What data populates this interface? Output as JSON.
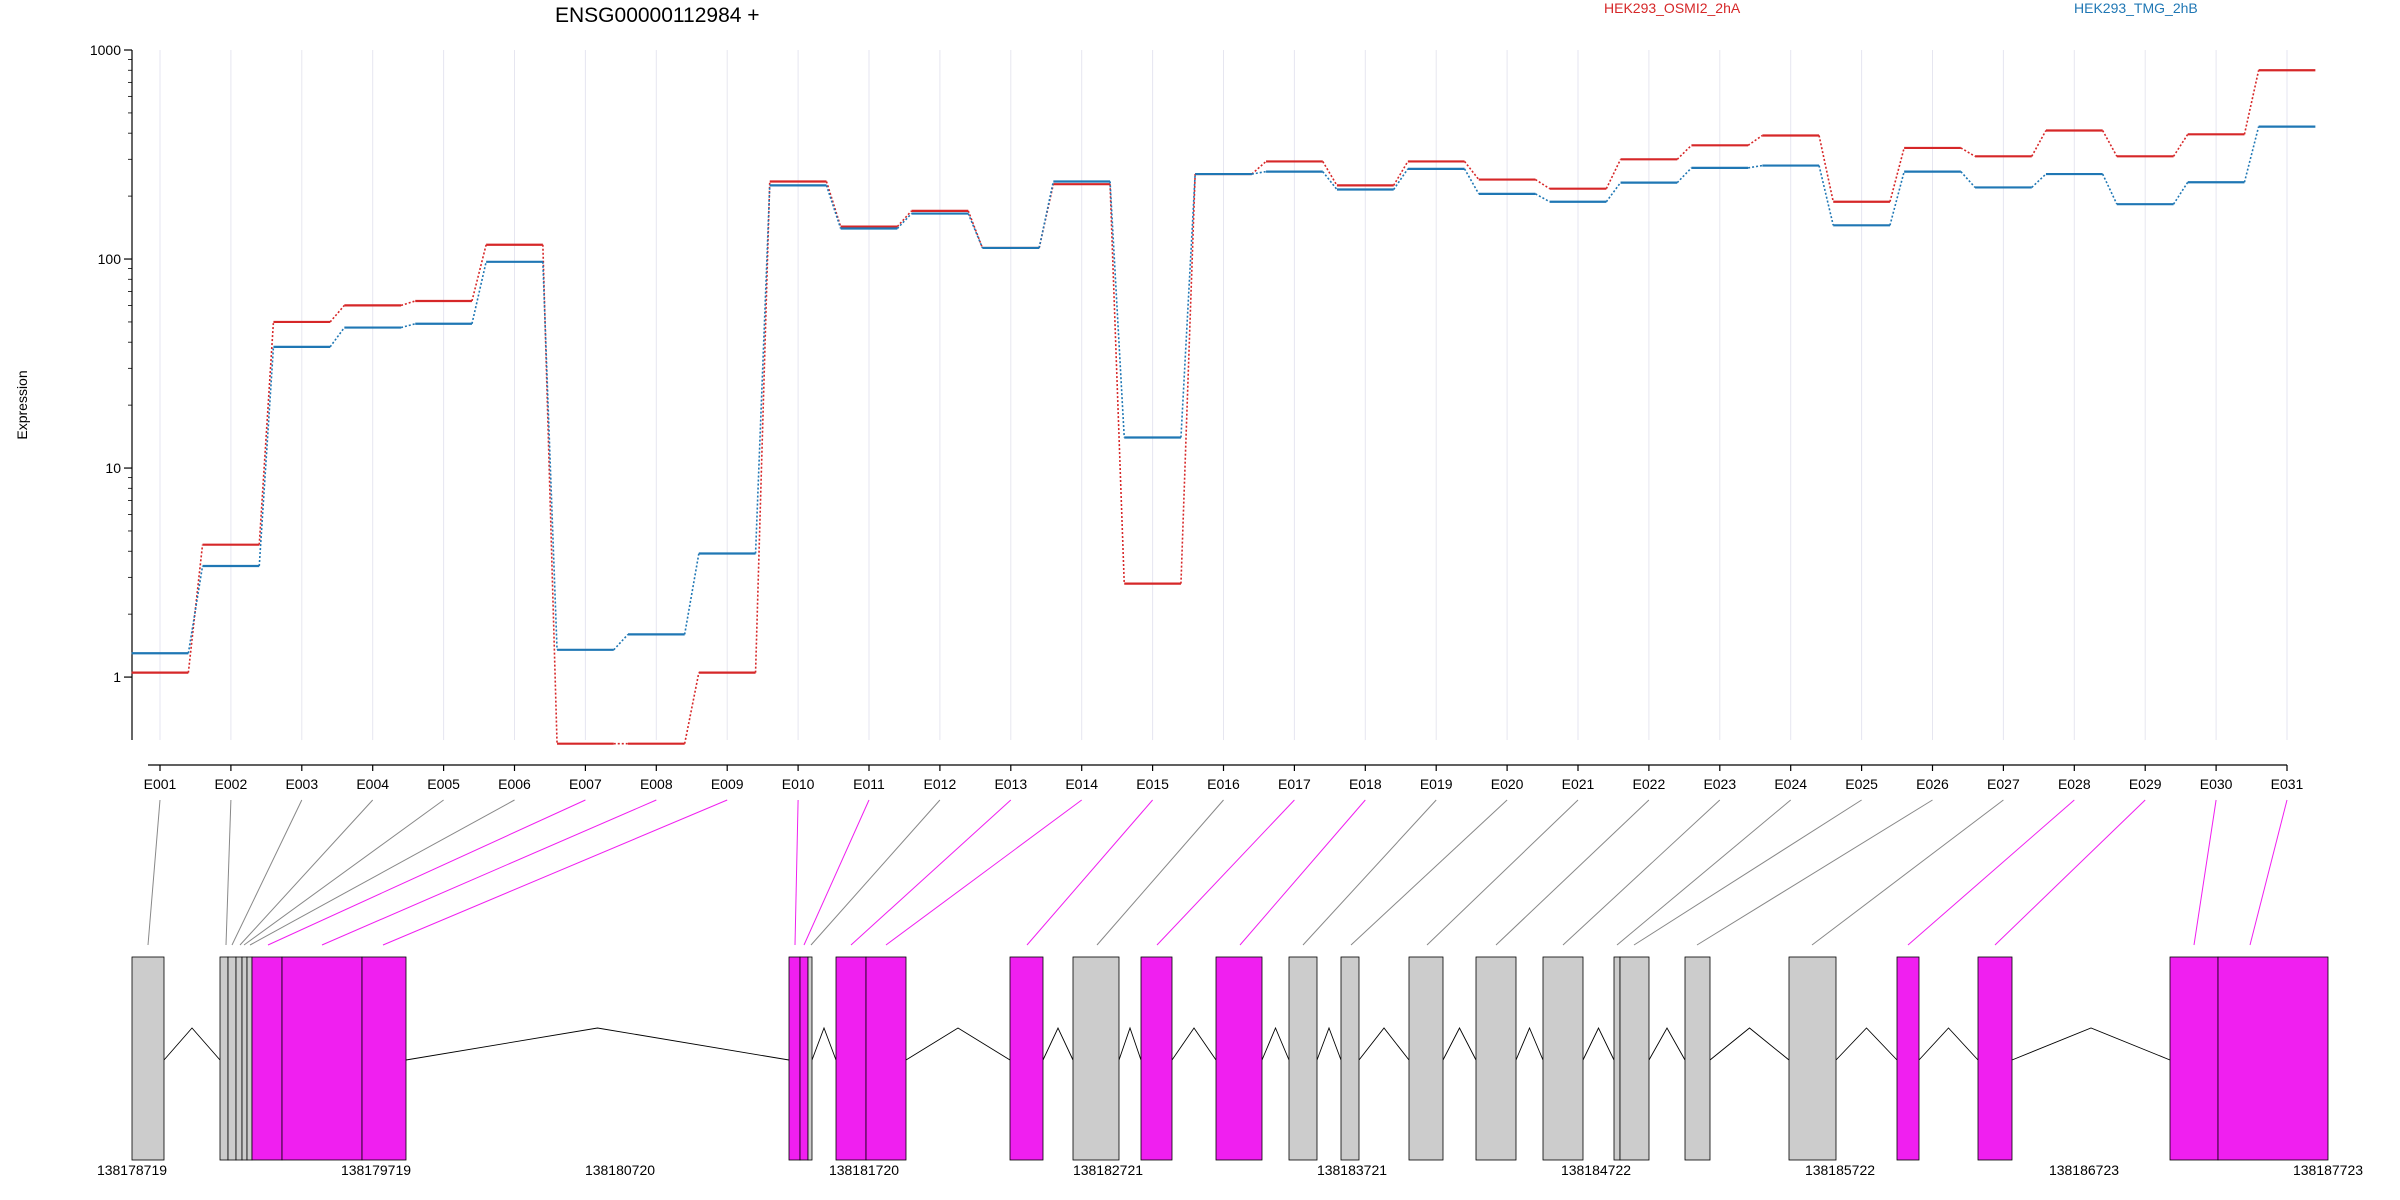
{
  "chart_data": {
    "type": "line",
    "title": "ENSG00000112984 +",
    "ylabel": "Expression",
    "yscale": "log",
    "ylim": [
      0.5,
      1000
    ],
    "y_ticks": [
      1,
      10,
      100,
      1000
    ],
    "y_tick_labels": [
      "1",
      "10",
      "100",
      "1000"
    ],
    "grid": "vertical, light, at each exon",
    "legend_position": "top-right",
    "categories": [
      "E001",
      "E002",
      "E003",
      "E004",
      "E005",
      "E006",
      "E007",
      "E008",
      "E009",
      "E010",
      "E011",
      "E012",
      "E013",
      "E014",
      "E015",
      "E016",
      "E017",
      "E018",
      "E019",
      "E020",
      "E021",
      "E022",
      "E023",
      "E024",
      "E025",
      "E026",
      "E027",
      "E028",
      "E029",
      "E030",
      "E031"
    ],
    "series": [
      {
        "name": "HEK293_OSMI2_2hA",
        "color": "#d62728",
        "values": [
          1.05,
          4.3,
          50,
          60,
          63,
          117,
          0.48,
          0.48,
          1.05,
          235,
          143,
          170,
          113,
          228,
          2.8,
          255,
          293,
          225,
          293,
          240,
          217,
          300,
          350,
          390,
          188,
          340,
          310,
          412,
          310,
          395,
          800
        ]
      },
      {
        "name": "HEK293_TMG_2hB",
        "color": "#1f77b4",
        "values": [
          1.3,
          3.4,
          38,
          47,
          49,
          97,
          1.35,
          1.6,
          3.9,
          225,
          140,
          165,
          113,
          235,
          14,
          255,
          262,
          215,
          270,
          205,
          188,
          232,
          273,
          280,
          145,
          262,
          220,
          255,
          183,
          233,
          430
        ]
      }
    ],
    "gene_model": {
      "genomic_axis_ticks": [
        "138178719",
        "138179719",
        "138180720",
        "138181720",
        "138182721",
        "138183721",
        "138184722",
        "138185722",
        "138186723",
        "138187723"
      ],
      "feature_colors": {
        "differential": "#f01ff0",
        "other": "#cccccc"
      },
      "exon_features": [
        {
          "exon": "E001",
          "differential": false
        },
        {
          "exon": "E002",
          "differential": false
        },
        {
          "exon": "E003",
          "differential": false
        },
        {
          "exon": "E004",
          "differential": false
        },
        {
          "exon": "E005",
          "differential": false
        },
        {
          "exon": "E006",
          "differential": false
        },
        {
          "exon": "E007",
          "differential": true
        },
        {
          "exon": "E008",
          "differential": true
        },
        {
          "exon": "E009",
          "differential": true
        },
        {
          "exon": "E010",
          "differential": true
        },
        {
          "exon": "E011",
          "differential": true
        },
        {
          "exon": "E012",
          "differential": false
        },
        {
          "exon": "E013",
          "differential": true
        },
        {
          "exon": "E014",
          "differential": true
        },
        {
          "exon": "E015",
          "differential": true
        },
        {
          "exon": "E016",
          "differential": false
        },
        {
          "exon": "E017",
          "differential": true
        },
        {
          "exon": "E018",
          "differential": true
        },
        {
          "exon": "E019",
          "differential": false
        },
        {
          "exon": "E020",
          "differential": false
        },
        {
          "exon": "E021",
          "differential": false
        },
        {
          "exon": "E022",
          "differential": false
        },
        {
          "exon": "E023",
          "differential": false
        },
        {
          "exon": "E024",
          "differential": false
        },
        {
          "exon": "E025",
          "differential": false
        },
        {
          "exon": "E026",
          "differential": false
        },
        {
          "exon": "E027",
          "differential": false
        },
        {
          "exon": "E028",
          "differential": true
        },
        {
          "exon": "E029",
          "differential": true
        },
        {
          "exon": "E030",
          "differential": true
        },
        {
          "exon": "E031",
          "differential": true
        }
      ]
    }
  }
}
